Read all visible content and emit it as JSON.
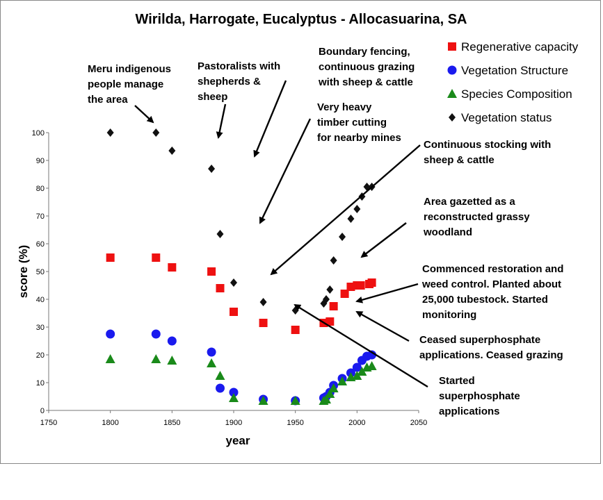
{
  "chart_data": {
    "type": "scatter",
    "title": "Wirilda, Harrogate, Eucalyptus - Allocasuarina, SA",
    "xlabel": "year",
    "ylabel": "score (%)",
    "xlim": [
      1750,
      2050
    ],
    "ylim": [
      0,
      100
    ],
    "x_ticks": [
      1750,
      1800,
      1850,
      1900,
      1950,
      2000,
      2050
    ],
    "y_ticks": [
      0,
      10,
      20,
      30,
      40,
      50,
      60,
      70,
      80,
      90,
      100
    ],
    "grid": false,
    "legend_position": "top-right",
    "series": [
      {
        "name": "Regenerative capacity",
        "marker": "square",
        "color": "#ee1111",
        "points": [
          [
            1800,
            55
          ],
          [
            1837,
            55
          ],
          [
            1850,
            51.5
          ],
          [
            1882,
            50
          ],
          [
            1889,
            44
          ],
          [
            1900,
            35.5
          ],
          [
            1924,
            31.5
          ],
          [
            1950,
            29
          ],
          [
            1973,
            31.5
          ],
          [
            1978,
            32
          ],
          [
            1981,
            37.5
          ],
          [
            1990,
            42
          ],
          [
            1995,
            44.5
          ],
          [
            2000,
            45
          ],
          [
            2003,
            45
          ],
          [
            2010,
            45.5
          ],
          [
            2012,
            46
          ]
        ]
      },
      {
        "name": "Vegetation Structure",
        "marker": "circle",
        "color": "#1a1aee",
        "points": [
          [
            1800,
            27.5
          ],
          [
            1837,
            27.5
          ],
          [
            1850,
            25
          ],
          [
            1882,
            21
          ],
          [
            1889,
            8
          ],
          [
            1900,
            6.5
          ],
          [
            1924,
            4
          ],
          [
            1950,
            3.5
          ],
          [
            1973,
            4.5
          ],
          [
            1975,
            5
          ],
          [
            1978,
            6.5
          ],
          [
            1981,
            9
          ],
          [
            1988,
            11.5
          ],
          [
            1995,
            13.5
          ],
          [
            2000,
            15.5
          ],
          [
            2004,
            18
          ],
          [
            2008,
            19.5
          ],
          [
            2012,
            20
          ]
        ]
      },
      {
        "name": "Species Composition",
        "marker": "triangle",
        "color": "#1a8a1a",
        "points": [
          [
            1800,
            18.5
          ],
          [
            1837,
            18.5
          ],
          [
            1850,
            18
          ],
          [
            1882,
            17
          ],
          [
            1889,
            12.5
          ],
          [
            1900,
            4.5
          ],
          [
            1924,
            3.5
          ],
          [
            1950,
            3.5
          ],
          [
            1973,
            3.5
          ],
          [
            1975,
            4
          ],
          [
            1978,
            6
          ],
          [
            1981,
            8
          ],
          [
            1988,
            10.5
          ],
          [
            1995,
            12
          ],
          [
            2000,
            12.5
          ],
          [
            2004,
            14
          ],
          [
            2008,
            15.5
          ],
          [
            2012,
            16
          ]
        ]
      },
      {
        "name": "Vegetation status",
        "marker": "diamond",
        "color": "#111111",
        "points": [
          [
            1800,
            100
          ],
          [
            1837,
            100
          ],
          [
            1850,
            93.5
          ],
          [
            1882,
            87
          ],
          [
            1889,
            63.5
          ],
          [
            1900,
            46
          ],
          [
            1924,
            39
          ],
          [
            1950,
            36
          ],
          [
            1973,
            38.5
          ],
          [
            1975,
            40
          ],
          [
            1978,
            43.5
          ],
          [
            1981,
            54
          ],
          [
            1988,
            62.5
          ],
          [
            1995,
            69
          ],
          [
            2000,
            72.5
          ],
          [
            2004,
            77
          ],
          [
            2008,
            80.5
          ],
          [
            2012,
            80.5
          ]
        ]
      }
    ],
    "annotations": [
      {
        "lines": [
          "Meru indigenous",
          "people manage",
          "the area"
        ]
      },
      {
        "lines": [
          "Pastoralists with",
          "shepherds  &",
          "sheep"
        ]
      },
      {
        "lines": [
          "Boundary fencing,",
          "continuous grazing",
          "with sheep & cattle"
        ]
      },
      {
        "lines": [
          "Very heavy",
          "timber cutting",
          "for nearby mines"
        ]
      },
      {
        "lines": [
          "Continuous stocking with",
          "sheep & cattle"
        ]
      },
      {
        "lines": [
          "Area gazetted as a",
          "reconstructed grassy",
          "woodland"
        ]
      },
      {
        "lines": [
          "Commenced restoration and",
          "weed control. Planted about",
          "25,000 tubestock. Started",
          "monitoring"
        ]
      },
      {
        "lines": [
          "Ceased superphosphate",
          "applications. Ceased grazing"
        ]
      },
      {
        "lines": [
          "Started",
          "superphosphate",
          "applications"
        ]
      }
    ]
  }
}
